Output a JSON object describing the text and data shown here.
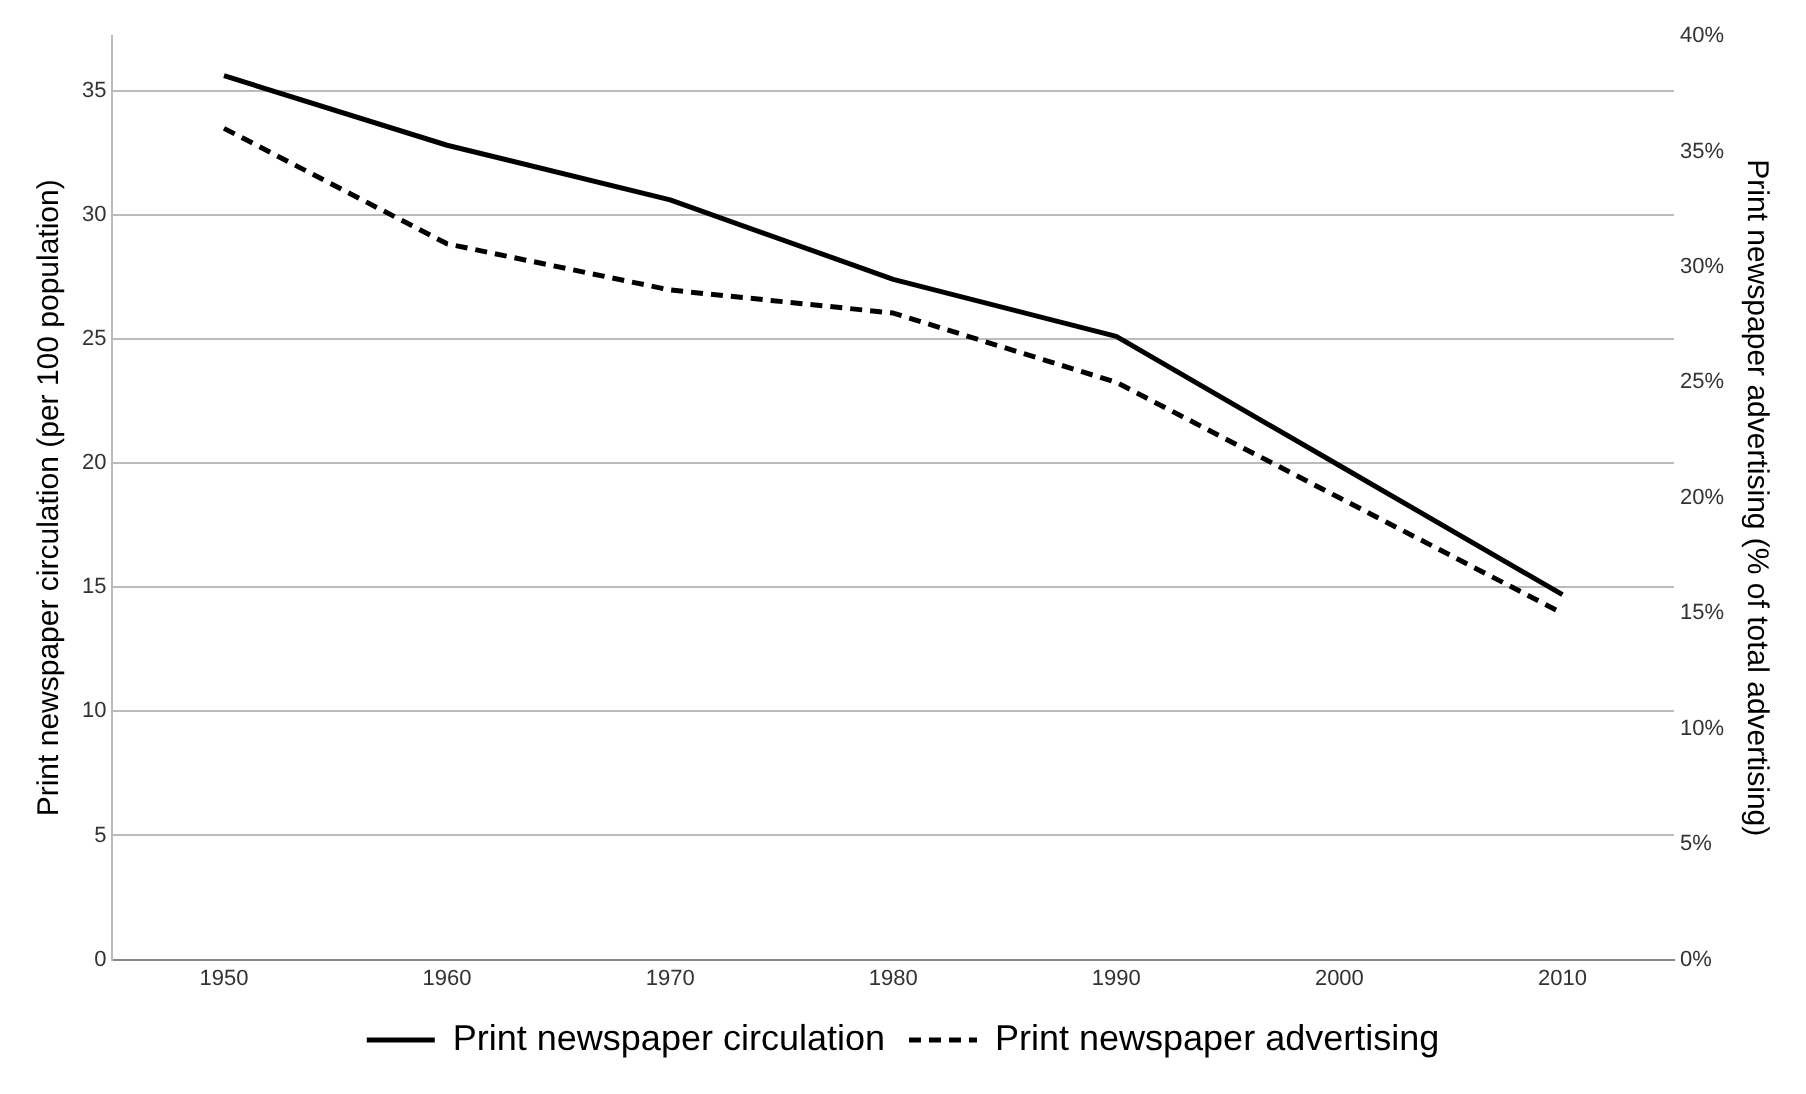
{
  "chart_data": {
    "type": "line",
    "categories": [
      "1950",
      "1960",
      "1970",
      "1980",
      "1990",
      "2000",
      "2010"
    ],
    "series": [
      {
        "name": "Print newspaper circulation",
        "color": "#000000",
        "values": [
          35.6,
          32.8,
          30.6,
          27.4,
          25.1,
          19.9,
          14.7
        ],
        "line_style": "solid"
      },
      {
        "name": "Print newspaper advertising",
        "color": "#000000",
        "values": [
          36,
          31,
          29,
          28,
          25,
          20,
          15
        ],
        "axis": "y2",
        "line_style": "dashed"
      }
    ],
    "ylabel": "Print newspaper circulation (per 100 population)",
    "y2label": "Print newspaper advertising (% of total advertising)",
    "ylim": [
      0,
      37.2
    ],
    "yticks": [
      0,
      5,
      10,
      15,
      20,
      25,
      30,
      35
    ],
    "y2lim": [
      0,
      40
    ],
    "y2ticks": [
      {
        "value": 0,
        "label": "0%"
      },
      {
        "value": 5,
        "label": "5%"
      },
      {
        "value": 10,
        "label": "10%"
      },
      {
        "value": 15,
        "label": "15%"
      },
      {
        "value": 20,
        "label": "20%"
      },
      {
        "value": 25,
        "label": "25%"
      },
      {
        "value": 30,
        "label": "30%"
      },
      {
        "value": 35,
        "label": "35%"
      },
      {
        "value": 40,
        "label": "40%"
      }
    ],
    "grid": "y",
    "legend": "bottom",
    "marker": "none"
  }
}
